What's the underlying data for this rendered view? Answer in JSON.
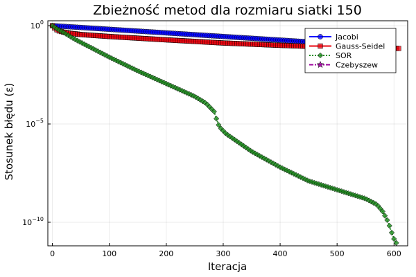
{
  "chart_data": {
    "type": "line",
    "title": "Zbieżność metod dla rozmiaru siatki 150",
    "xlabel": "Iteracja",
    "ylabel": "Stosunek błędu (ε)",
    "xlim": [
      -8,
      624
    ],
    "ylim_log10": [
      -11.2,
      0.25
    ],
    "y_scale": "log",
    "grid": true,
    "legend_position": "top-right",
    "x_ticks": [
      {
        "value": 0,
        "label": "0"
      },
      {
        "value": 100,
        "label": "100"
      },
      {
        "value": 200,
        "label": "200"
      },
      {
        "value": 300,
        "label": "300"
      },
      {
        "value": 400,
        "label": "400"
      },
      {
        "value": 500,
        "label": "500"
      },
      {
        "value": 600,
        "label": "600"
      }
    ],
    "y_ticks": [
      {
        "exp": 0,
        "base": "10",
        "power": "0"
      },
      {
        "exp": -5,
        "base": "10",
        "power": "−5"
      },
      {
        "exp": -10,
        "base": "10",
        "power": "−10"
      }
    ],
    "series": [
      {
        "name": "Jacobi",
        "color": "#0000ff",
        "marker": "circle",
        "line": "solid",
        "x": [
          0,
          600
        ],
        "y_log10": [
          0,
          -1.1
        ]
      },
      {
        "name": "Gauss-Seidel",
        "color": "#e8000b",
        "marker": "square",
        "line": "solid",
        "x": [
          0,
          5,
          10,
          20,
          30,
          50,
          100,
          200,
          300,
          400,
          500,
          600,
          610
        ],
        "y_log10": [
          0,
          -0.15,
          -0.25,
          -0.33,
          -0.38,
          -0.45,
          -0.55,
          -0.72,
          -0.88,
          -1.0,
          -1.1,
          -1.15,
          -1.16
        ]
      },
      {
        "name": "SOR",
        "color": "#1a8a1a",
        "marker": "diamond",
        "line": "dotted",
        "x": [
          0,
          10,
          20,
          40,
          60,
          100,
          150,
          200,
          250,
          270,
          285,
          290,
          295,
          300,
          305,
          320,
          350,
          400,
          450,
          500,
          550,
          570,
          580,
          590,
          595,
          600,
          605
        ],
        "y_log10": [
          0,
          -0.2,
          -0.35,
          -0.7,
          -1.0,
          -1.6,
          -2.3,
          -2.95,
          -3.6,
          -3.95,
          -4.4,
          -4.95,
          -5.2,
          -5.35,
          -5.5,
          -5.8,
          -6.4,
          -7.2,
          -7.9,
          -8.35,
          -8.8,
          -9.1,
          -9.45,
          -10.0,
          -10.45,
          -10.85,
          -11.1
        ]
      },
      {
        "name": "Czebyszew",
        "color": "#9b009b",
        "marker": "star",
        "line": "dashdot",
        "x": [],
        "y_log10": []
      }
    ]
  }
}
